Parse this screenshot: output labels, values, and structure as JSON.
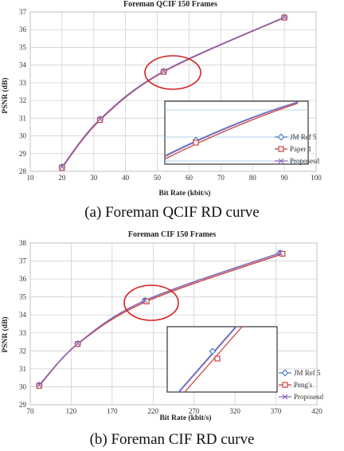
{
  "chart_data": [
    {
      "type": "line",
      "title": "Foreman QCIF 150 Frames",
      "xlabel": "Bit Rate (kbit/s)",
      "ylabel": "PSNR (dB)",
      "xlim": [
        10,
        100
      ],
      "ylim": [
        28,
        37
      ],
      "xticks": [
        "10",
        "20",
        "30",
        "40",
        "50",
        "60",
        "70",
        "80",
        "90",
        "100"
      ],
      "yticks": [
        "28",
        "29",
        "30",
        "31",
        "32",
        "33",
        "34",
        "35",
        "36",
        "37"
      ],
      "grid": true,
      "legend_position": "bottom-right",
      "caption": "(a) Foreman QCIF RD curve",
      "series": [
        {
          "name": "JM Ref 5",
          "color": "#4a7ec9",
          "marker": "diamond",
          "x": [
            20,
            32,
            52,
            90
          ],
          "y": [
            28.25,
            30.95,
            33.65,
            36.7
          ]
        },
        {
          "name": "Paper 1",
          "color": "#c9433e",
          "marker": "square",
          "x": [
            20,
            32,
            52,
            90
          ],
          "y": [
            28.2,
            30.9,
            33.62,
            36.68
          ]
        },
        {
          "name": "Proposesd",
          "color": "#8a66b8",
          "marker": "x",
          "x": [
            20,
            32,
            52,
            90
          ],
          "y": [
            28.25,
            30.95,
            33.65,
            36.7
          ]
        }
      ]
    },
    {
      "type": "line",
      "title": "Foreman CIF 150 Frames",
      "xlabel": "Bit Rate (kbit/s)",
      "ylabel": "PSNR (dB)",
      "xlim": [
        70,
        420
      ],
      "ylim": [
        29,
        38
      ],
      "xticks": [
        "70",
        "120",
        "170",
        "220",
        "270",
        "320",
        "370",
        "420"
      ],
      "yticks": [
        "29",
        "30",
        "31",
        "32",
        "33",
        "34",
        "35",
        "36",
        "37",
        "38"
      ],
      "grid": true,
      "legend_position": "bottom-right",
      "caption": "(b) Foreman CIF RD curve",
      "series": [
        {
          "name": "JM Ref 5",
          "color": "#4a7ec9",
          "marker": "diamond",
          "x": [
            81,
            128,
            210,
            375
          ],
          "y": [
            30.1,
            32.4,
            34.8,
            37.45
          ]
        },
        {
          "name": "Peng's",
          "color": "#c9433e",
          "marker": "square",
          "x": [
            81,
            128,
            212,
            378
          ],
          "y": [
            30.05,
            32.38,
            34.75,
            37.4
          ]
        },
        {
          "name": "Proposesd",
          "color": "#8a66b8",
          "marker": "x",
          "x": [
            81,
            128,
            210,
            375
          ],
          "y": [
            30.1,
            32.4,
            34.8,
            37.45
          ]
        }
      ]
    }
  ]
}
